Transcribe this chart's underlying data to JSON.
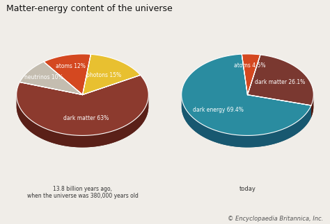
{
  "title": "Matter-energy content of the universe",
  "title_fontsize": 9,
  "background_color": "#f0ede8",
  "left_pie": {
    "labels": [
      "dark matter 63%",
      "photons 15%",
      "atoms 12%",
      "neutrinos 10%"
    ],
    "values": [
      63,
      15,
      12,
      10
    ],
    "colors": [
      "#8c3a2e",
      "#e8c030",
      "#d44820",
      "#c4bdb0"
    ],
    "side_colors": [
      "#5a2018",
      "#a08010",
      "#903010",
      "#888070"
    ],
    "startangle": 162,
    "subtitle": "13.8 billion years ago,\nwhen the universe was 380,000 years old"
  },
  "right_pie": {
    "labels": [
      "dark energy 69.4%",
      "dark matter 26.1%",
      "atoms 4.5%"
    ],
    "values": [
      69.4,
      26.1,
      4.5
    ],
    "colors": [
      "#2a8ca0",
      "#7a3830",
      "#d44820"
    ],
    "side_colors": [
      "#185870",
      "#501a10",
      "#903010"
    ],
    "startangle": 95,
    "subtitle": "today"
  },
  "footnote": "© Encyclopaedia Britannica, Inc.",
  "footnote_fontsize": 6,
  "label_fontsize": 5.5
}
